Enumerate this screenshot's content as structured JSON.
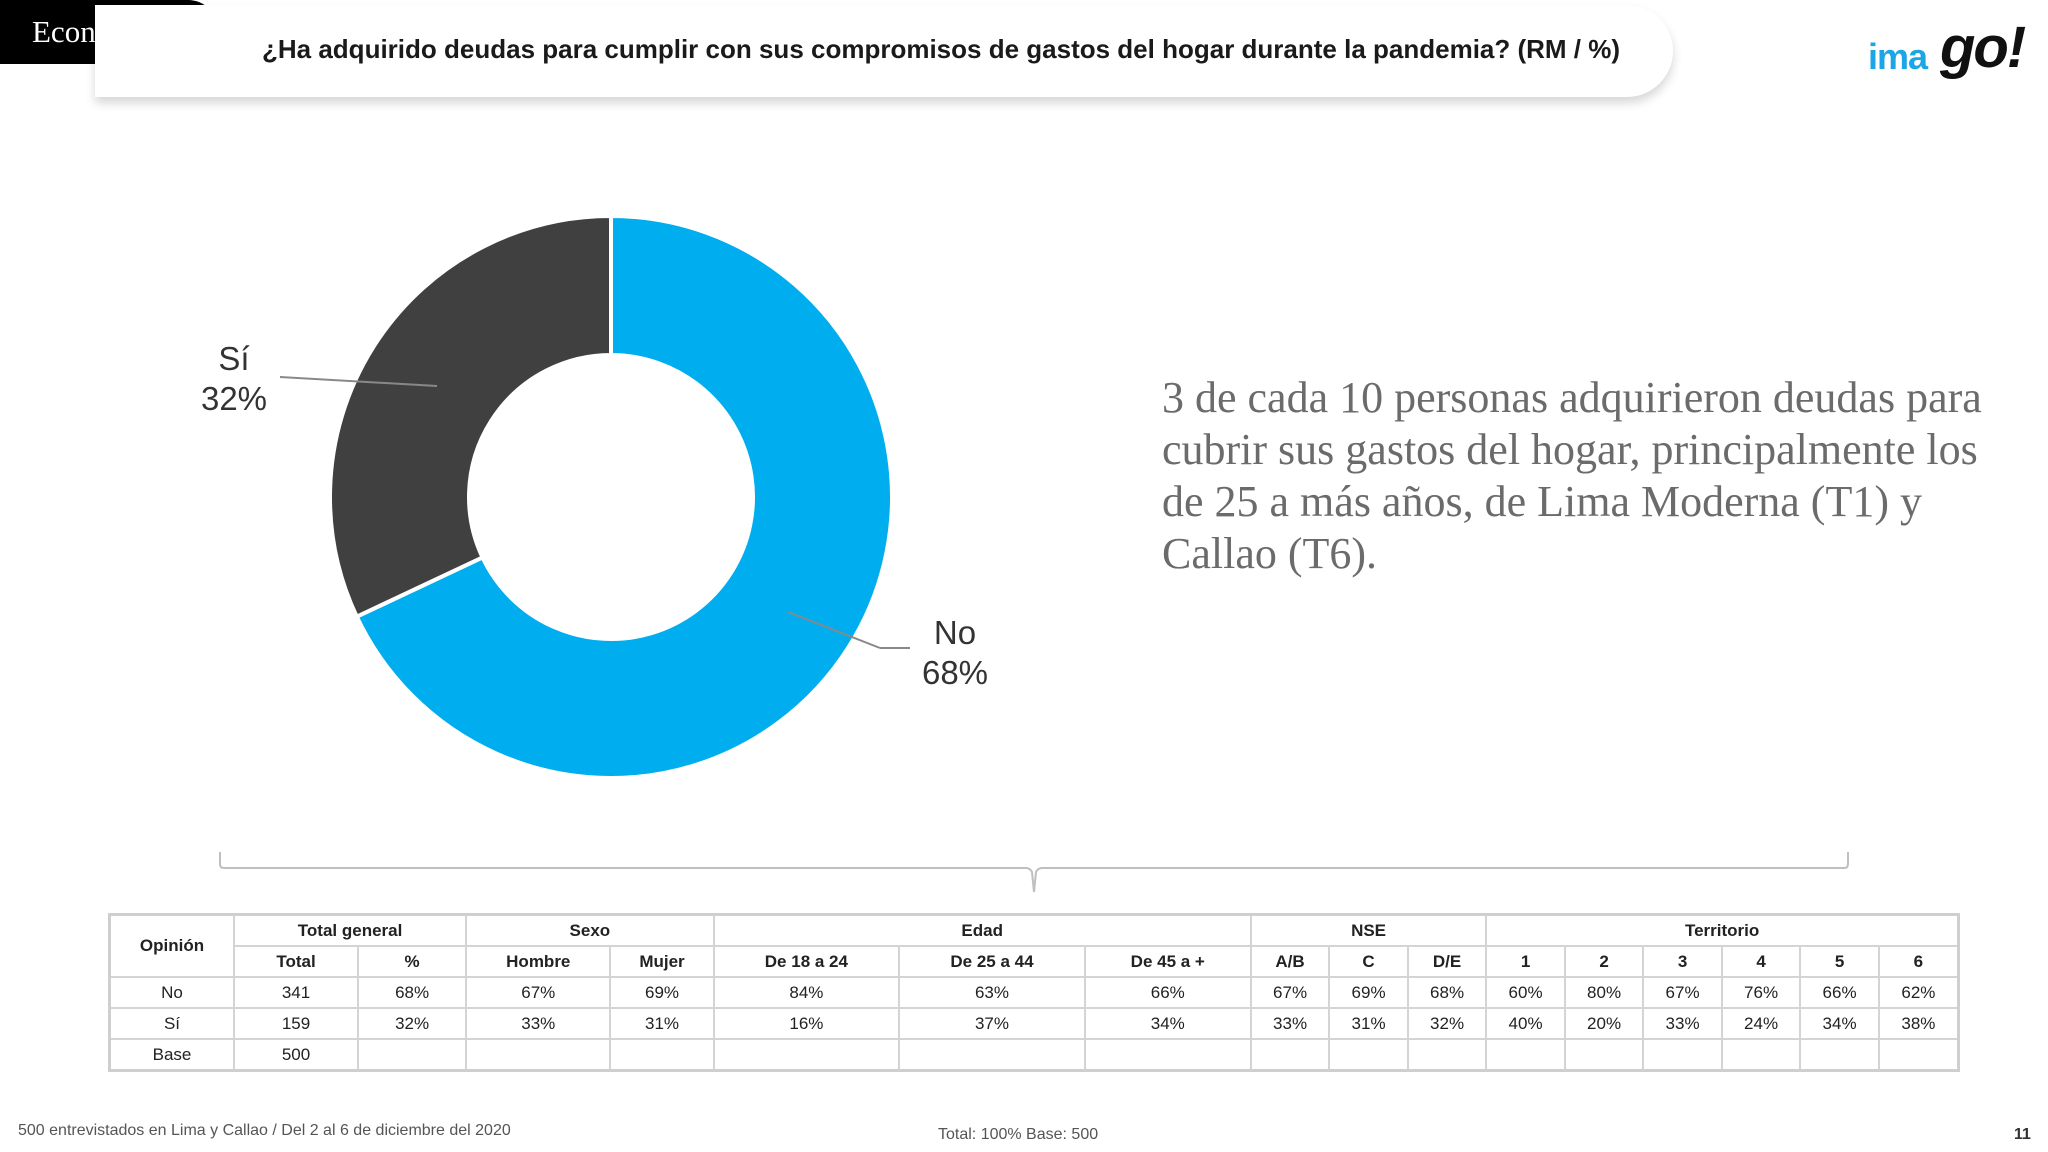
{
  "section": "Economía",
  "title": "¿Ha adquirido deudas para cumplir con sus compromisos de gastos del hogar durante la pandemia? (RM  /  %)",
  "logo": {
    "part1": "ima",
    "part2": "go!"
  },
  "colors": {
    "si": "#404040",
    "no": "#00aeef"
  },
  "chart_data": {
    "type": "pie",
    "donut": true,
    "slices": [
      {
        "name": "No",
        "value": 68,
        "label": "68%",
        "color": "#00aeef"
      },
      {
        "name": "Sí",
        "value": 32,
        "label": "32%",
        "color": "#404040"
      }
    ]
  },
  "summary": "3 de cada 10 personas adquirieron deudas para cubrir sus gastos del hogar, principalmente los de 25 a más años, de Lima Moderna (T1) y Callao (T6).",
  "table": {
    "opinion_header": "Opinión",
    "groups": [
      {
        "label": "Total general",
        "span": 2
      },
      {
        "label": "Sexo",
        "span": 2
      },
      {
        "label": "Edad",
        "span": 3
      },
      {
        "label": "NSE",
        "span": 3
      },
      {
        "label": "Territorio",
        "span": 6
      }
    ],
    "columns": [
      "Total",
      "%",
      "Hombre",
      "Mujer",
      "De 18 a 24",
      "De 25 a 44",
      "De 45 a +",
      "A/B",
      "C",
      "D/E",
      "1",
      "2",
      "3",
      "4",
      "5",
      "6"
    ],
    "rows": [
      {
        "label": "No",
        "cells": [
          "341",
          "68%",
          "67%",
          "69%",
          "84%",
          "63%",
          "66%",
          "67%",
          "69%",
          "68%",
          "60%",
          "80%",
          "67%",
          "76%",
          "66%",
          "62%"
        ]
      },
      {
        "label": "Sí",
        "cells": [
          "159",
          "32%",
          "33%",
          "31%",
          "16%",
          "37%",
          "34%",
          "33%",
          "31%",
          "32%",
          "40%",
          "20%",
          "33%",
          "24%",
          "34%",
          "38%"
        ]
      },
      {
        "label": "Base",
        "cells": [
          "500",
          "",
          "",
          "",
          "",
          "",
          "",
          "",
          "",
          "",
          "",
          "",
          "",
          "",
          "",
          ""
        ]
      }
    ]
  },
  "footer": {
    "left": "500 entrevistados en Lima y Callao   /   Del 2 al 6 de diciembre del 2020",
    "middle": "Total: 100%   Base: 500",
    "page": "11"
  }
}
